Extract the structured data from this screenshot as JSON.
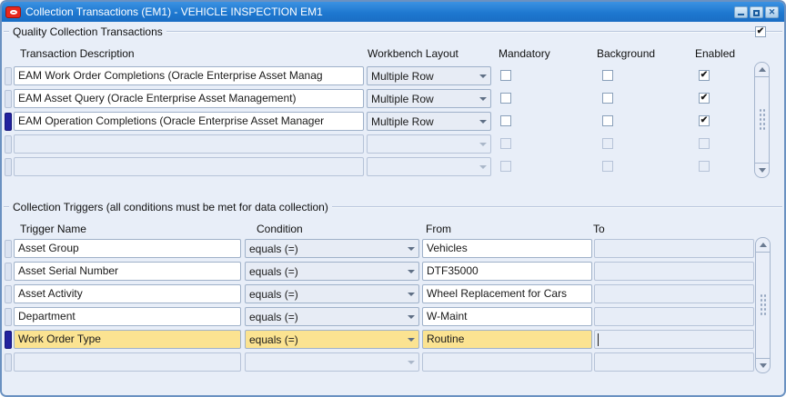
{
  "window": {
    "title": "Collection Transactions (EM1) - VEHICLE INSPECTION EM1",
    "icons": {
      "app_icon": "oracle-logo",
      "minimize": "minimize-bar",
      "maximize": "restore-box",
      "close": "x"
    },
    "close_glyph": "✕"
  },
  "colors": {
    "titlebar-blue": "#1e78d0",
    "highlight-yellow": "#fbe391",
    "indicator-navy": "#22229e",
    "oracle-red": "#e8281e"
  },
  "transactions_section": {
    "title": "Quality Collection Transactions",
    "header_checkbox_checked": true,
    "check_glyph": "✔",
    "columns": [
      "Transaction Description",
      "Workbench Layout",
      "Mandatory",
      "Background",
      "Enabled"
    ],
    "rows": [
      {
        "description": "EAM Work Order Completions (Oracle Enterprise Asset Manag",
        "workbench_layout": "Multiple Row",
        "mandatory": false,
        "background": false,
        "enabled": true,
        "current": false,
        "empty": false
      },
      {
        "description": "EAM Asset Query (Oracle Enterprise Asset Management)",
        "workbench_layout": "Multiple Row",
        "mandatory": false,
        "background": false,
        "enabled": true,
        "current": false,
        "empty": false
      },
      {
        "description": "EAM Operation Completions (Oracle Enterprise Asset Manager",
        "workbench_layout": "Multiple Row",
        "mandatory": false,
        "background": false,
        "enabled": true,
        "current": true,
        "empty": false
      },
      {
        "description": "",
        "workbench_layout": "",
        "mandatory": false,
        "background": false,
        "enabled": false,
        "current": false,
        "empty": true
      },
      {
        "description": "",
        "workbench_layout": "",
        "mandatory": false,
        "background": false,
        "enabled": false,
        "current": false,
        "empty": true
      }
    ]
  },
  "triggers_section": {
    "title": "Collection Triggers (all conditions must be met for data collection)",
    "columns": [
      "Trigger Name",
      "Condition",
      "From",
      "To"
    ],
    "rows": [
      {
        "trigger_name": "Asset Group",
        "condition": "equals (=)",
        "from": "Vehicles",
        "to": "",
        "current": false,
        "highlighted": false,
        "empty": false,
        "to_caret": false
      },
      {
        "trigger_name": "Asset Serial Number",
        "condition": "equals (=)",
        "from": "DTF35000",
        "to": "",
        "current": false,
        "highlighted": false,
        "empty": false,
        "to_caret": false
      },
      {
        "trigger_name": "Asset Activity",
        "condition": "equals (=)",
        "from": "Wheel Replacement for Cars",
        "to": "",
        "current": false,
        "highlighted": false,
        "empty": false,
        "to_caret": false
      },
      {
        "trigger_name": "Department",
        "condition": "equals (=)",
        "from": "W-Maint",
        "to": "",
        "current": false,
        "highlighted": false,
        "empty": false,
        "to_caret": false
      },
      {
        "trigger_name": "Work Order Type",
        "condition": "equals (=)",
        "from": "Routine",
        "to": "",
        "current": true,
        "highlighted": true,
        "empty": false,
        "to_caret": true
      },
      {
        "trigger_name": "",
        "condition": "",
        "from": "",
        "to": "",
        "current": false,
        "highlighted": false,
        "empty": true,
        "to_caret": false
      }
    ]
  }
}
